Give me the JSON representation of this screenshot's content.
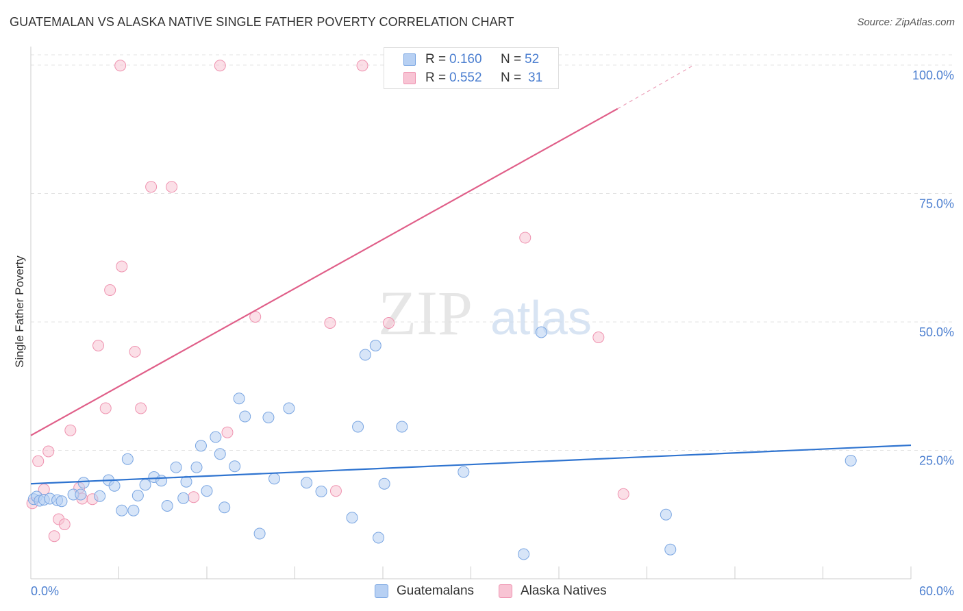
{
  "header": {
    "title": "GUATEMALAN VS ALASKA NATIVE SINGLE FATHER POVERTY CORRELATION CHART",
    "source": "Source: ZipAtlas.com"
  },
  "legend_stats": [
    {
      "r_label": "R =",
      "r_value": "0.160",
      "n_label": "N =",
      "n_value": "52"
    },
    {
      "r_label": "R =",
      "r_value": "0.552",
      "n_label": "N =",
      "n_value": "31"
    }
  ],
  "watermark": {
    "zip": "ZIP",
    "atlas": "atlas"
  },
  "colors": {
    "blue_fill": "#b7d0f3",
    "blue_stroke": "#7aa6e2",
    "blue_line": "#2f74d0",
    "pink_fill": "#f8c4d4",
    "pink_stroke": "#ef93b0",
    "pink_line": "#e05f89",
    "tick_label": "#4c7fd0",
    "grid": "#e3e3e3"
  },
  "chart_data": {
    "type": "scatter",
    "title": "GUATEMALAN VS ALASKA NATIVE SINGLE FATHER POVERTY CORRELATION CHART",
    "xlabel": "",
    "ylabel": "Single Father Poverty",
    "xlim": [
      0,
      60
    ],
    "ylim": [
      0,
      102
    ],
    "x_tick_labels": [
      "0.0%",
      "60.0%"
    ],
    "y_ticks": [
      25,
      50,
      75,
      100
    ],
    "y_tick_labels": [
      "25.0%",
      "50.0%",
      "75.0%",
      "100.0%"
    ],
    "grid": true,
    "legend_position": "bottom-center",
    "series": [
      {
        "name": "Guatemalans",
        "r": 0.16,
        "n": 52,
        "trend": {
          "x0": 0,
          "y0": 18.5,
          "x1": 60,
          "y1": 26.0
        },
        "points": [
          [
            0.2,
            15.5
          ],
          [
            0.4,
            16.0
          ],
          [
            0.6,
            15.2
          ],
          [
            0.9,
            15.4
          ],
          [
            1.3,
            15.6
          ],
          [
            1.8,
            15.3
          ],
          [
            2.1,
            15.1
          ],
          [
            2.9,
            16.4
          ],
          [
            3.4,
            16.4
          ],
          [
            3.6,
            18.7
          ],
          [
            4.7,
            16.1
          ],
          [
            5.3,
            19.2
          ],
          [
            5.7,
            18.1
          ],
          [
            6.2,
            13.3
          ],
          [
            6.6,
            23.3
          ],
          [
            7.0,
            13.3
          ],
          [
            7.3,
            16.2
          ],
          [
            7.8,
            18.3
          ],
          [
            8.4,
            19.8
          ],
          [
            8.9,
            19.1
          ],
          [
            9.3,
            14.2
          ],
          [
            9.9,
            21.7
          ],
          [
            10.4,
            15.7
          ],
          [
            10.6,
            18.9
          ],
          [
            11.3,
            21.7
          ],
          [
            11.6,
            25.9
          ],
          [
            12.0,
            17.1
          ],
          [
            12.6,
            27.6
          ],
          [
            12.9,
            24.3
          ],
          [
            13.2,
            13.9
          ],
          [
            13.9,
            21.9
          ],
          [
            14.6,
            31.6
          ],
          [
            14.2,
            35.1
          ],
          [
            15.6,
            8.8
          ],
          [
            16.2,
            31.4
          ],
          [
            16.6,
            19.5
          ],
          [
            17.6,
            33.2
          ],
          [
            18.8,
            18.7
          ],
          [
            19.8,
            17.0
          ],
          [
            21.9,
            11.9
          ],
          [
            22.3,
            29.6
          ],
          [
            22.8,
            43.6
          ],
          [
            23.5,
            45.4
          ],
          [
            23.7,
            8.0
          ],
          [
            24.1,
            18.5
          ],
          [
            25.3,
            29.6
          ],
          [
            29.5,
            20.8
          ],
          [
            33.6,
            4.8
          ],
          [
            34.8,
            48.0
          ],
          [
            43.3,
            12.5
          ],
          [
            43.6,
            5.7
          ],
          [
            55.9,
            23.0
          ]
        ]
      },
      {
        "name": "Alaska Natives",
        "r": 0.552,
        "n": 31,
        "trend": {
          "x0": 0,
          "y0": 27.9,
          "x1": 40,
          "y1": 91.5
        },
        "trend_dashed": {
          "x0": 40,
          "y0": 91.5,
          "x1": 45.2,
          "y1": 100.0
        },
        "points": [
          [
            0.1,
            14.7
          ],
          [
            0.5,
            22.9
          ],
          [
            0.9,
            17.4
          ],
          [
            1.2,
            24.8
          ],
          [
            1.6,
            8.3
          ],
          [
            1.9,
            11.6
          ],
          [
            2.3,
            10.6
          ],
          [
            2.7,
            28.9
          ],
          [
            3.3,
            17.7
          ],
          [
            3.5,
            15.6
          ],
          [
            4.2,
            15.5
          ],
          [
            4.6,
            45.4
          ],
          [
            5.1,
            33.2
          ],
          [
            5.4,
            56.2
          ],
          [
            6.1,
            99.9
          ],
          [
            6.2,
            60.8
          ],
          [
            7.1,
            44.2
          ],
          [
            7.5,
            33.2
          ],
          [
            8.2,
            76.3
          ],
          [
            9.6,
            76.3
          ],
          [
            12.9,
            99.9
          ],
          [
            13.4,
            28.5
          ],
          [
            15.3,
            51.0
          ],
          [
            20.4,
            49.8
          ],
          [
            22.6,
            99.9
          ],
          [
            24.4,
            49.8
          ],
          [
            33.7,
            66.4
          ],
          [
            38.7,
            47.0
          ],
          [
            40.4,
            16.5
          ],
          [
            20.8,
            17.1
          ],
          [
            11.1,
            15.9
          ]
        ]
      }
    ]
  }
}
